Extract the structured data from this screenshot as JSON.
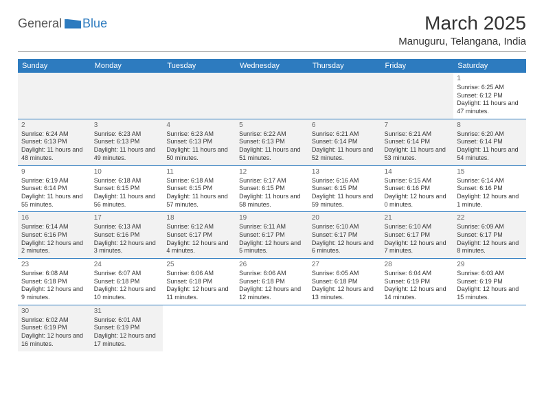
{
  "logo": {
    "general": "General",
    "blue": "Blue"
  },
  "title": "March 2025",
  "location": "Manuguru, Telangana, India",
  "day_header_bg": "#2d7bbf",
  "day_header_fg": "#ffffff",
  "alt_row_bg": "#f2f2f2",
  "border_color": "#2d7bbf",
  "days": [
    "Sunday",
    "Monday",
    "Tuesday",
    "Wednesday",
    "Thursday",
    "Friday",
    "Saturday"
  ],
  "weeks": [
    [
      null,
      null,
      null,
      null,
      null,
      null,
      {
        "n": "1",
        "sr": "Sunrise: 6:25 AM",
        "ss": "Sunset: 6:12 PM",
        "dl": "Daylight: 11 hours and 47 minutes."
      }
    ],
    [
      {
        "n": "2",
        "sr": "Sunrise: 6:24 AM",
        "ss": "Sunset: 6:13 PM",
        "dl": "Daylight: 11 hours and 48 minutes."
      },
      {
        "n": "3",
        "sr": "Sunrise: 6:23 AM",
        "ss": "Sunset: 6:13 PM",
        "dl": "Daylight: 11 hours and 49 minutes."
      },
      {
        "n": "4",
        "sr": "Sunrise: 6:23 AM",
        "ss": "Sunset: 6:13 PM",
        "dl": "Daylight: 11 hours and 50 minutes."
      },
      {
        "n": "5",
        "sr": "Sunrise: 6:22 AM",
        "ss": "Sunset: 6:13 PM",
        "dl": "Daylight: 11 hours and 51 minutes."
      },
      {
        "n": "6",
        "sr": "Sunrise: 6:21 AM",
        "ss": "Sunset: 6:14 PM",
        "dl": "Daylight: 11 hours and 52 minutes."
      },
      {
        "n": "7",
        "sr": "Sunrise: 6:21 AM",
        "ss": "Sunset: 6:14 PM",
        "dl": "Daylight: 11 hours and 53 minutes."
      },
      {
        "n": "8",
        "sr": "Sunrise: 6:20 AM",
        "ss": "Sunset: 6:14 PM",
        "dl": "Daylight: 11 hours and 54 minutes."
      }
    ],
    [
      {
        "n": "9",
        "sr": "Sunrise: 6:19 AM",
        "ss": "Sunset: 6:14 PM",
        "dl": "Daylight: 11 hours and 55 minutes."
      },
      {
        "n": "10",
        "sr": "Sunrise: 6:18 AM",
        "ss": "Sunset: 6:15 PM",
        "dl": "Daylight: 11 hours and 56 minutes."
      },
      {
        "n": "11",
        "sr": "Sunrise: 6:18 AM",
        "ss": "Sunset: 6:15 PM",
        "dl": "Daylight: 11 hours and 57 minutes."
      },
      {
        "n": "12",
        "sr": "Sunrise: 6:17 AM",
        "ss": "Sunset: 6:15 PM",
        "dl": "Daylight: 11 hours and 58 minutes."
      },
      {
        "n": "13",
        "sr": "Sunrise: 6:16 AM",
        "ss": "Sunset: 6:15 PM",
        "dl": "Daylight: 11 hours and 59 minutes."
      },
      {
        "n": "14",
        "sr": "Sunrise: 6:15 AM",
        "ss": "Sunset: 6:16 PM",
        "dl": "Daylight: 12 hours and 0 minutes."
      },
      {
        "n": "15",
        "sr": "Sunrise: 6:14 AM",
        "ss": "Sunset: 6:16 PM",
        "dl": "Daylight: 12 hours and 1 minute."
      }
    ],
    [
      {
        "n": "16",
        "sr": "Sunrise: 6:14 AM",
        "ss": "Sunset: 6:16 PM",
        "dl": "Daylight: 12 hours and 2 minutes."
      },
      {
        "n": "17",
        "sr": "Sunrise: 6:13 AM",
        "ss": "Sunset: 6:16 PM",
        "dl": "Daylight: 12 hours and 3 minutes."
      },
      {
        "n": "18",
        "sr": "Sunrise: 6:12 AM",
        "ss": "Sunset: 6:17 PM",
        "dl": "Daylight: 12 hours and 4 minutes."
      },
      {
        "n": "19",
        "sr": "Sunrise: 6:11 AM",
        "ss": "Sunset: 6:17 PM",
        "dl": "Daylight: 12 hours and 5 minutes."
      },
      {
        "n": "20",
        "sr": "Sunrise: 6:10 AM",
        "ss": "Sunset: 6:17 PM",
        "dl": "Daylight: 12 hours and 6 minutes."
      },
      {
        "n": "21",
        "sr": "Sunrise: 6:10 AM",
        "ss": "Sunset: 6:17 PM",
        "dl": "Daylight: 12 hours and 7 minutes."
      },
      {
        "n": "22",
        "sr": "Sunrise: 6:09 AM",
        "ss": "Sunset: 6:17 PM",
        "dl": "Daylight: 12 hours and 8 minutes."
      }
    ],
    [
      {
        "n": "23",
        "sr": "Sunrise: 6:08 AM",
        "ss": "Sunset: 6:18 PM",
        "dl": "Daylight: 12 hours and 9 minutes."
      },
      {
        "n": "24",
        "sr": "Sunrise: 6:07 AM",
        "ss": "Sunset: 6:18 PM",
        "dl": "Daylight: 12 hours and 10 minutes."
      },
      {
        "n": "25",
        "sr": "Sunrise: 6:06 AM",
        "ss": "Sunset: 6:18 PM",
        "dl": "Daylight: 12 hours and 11 minutes."
      },
      {
        "n": "26",
        "sr": "Sunrise: 6:06 AM",
        "ss": "Sunset: 6:18 PM",
        "dl": "Daylight: 12 hours and 12 minutes."
      },
      {
        "n": "27",
        "sr": "Sunrise: 6:05 AM",
        "ss": "Sunset: 6:18 PM",
        "dl": "Daylight: 12 hours and 13 minutes."
      },
      {
        "n": "28",
        "sr": "Sunrise: 6:04 AM",
        "ss": "Sunset: 6:19 PM",
        "dl": "Daylight: 12 hours and 14 minutes."
      },
      {
        "n": "29",
        "sr": "Sunrise: 6:03 AM",
        "ss": "Sunset: 6:19 PM",
        "dl": "Daylight: 12 hours and 15 minutes."
      }
    ],
    [
      {
        "n": "30",
        "sr": "Sunrise: 6:02 AM",
        "ss": "Sunset: 6:19 PM",
        "dl": "Daylight: 12 hours and 16 minutes."
      },
      {
        "n": "31",
        "sr": "Sunrise: 6:01 AM",
        "ss": "Sunset: 6:19 PM",
        "dl": "Daylight: 12 hours and 17 minutes."
      },
      null,
      null,
      null,
      null,
      null
    ]
  ]
}
